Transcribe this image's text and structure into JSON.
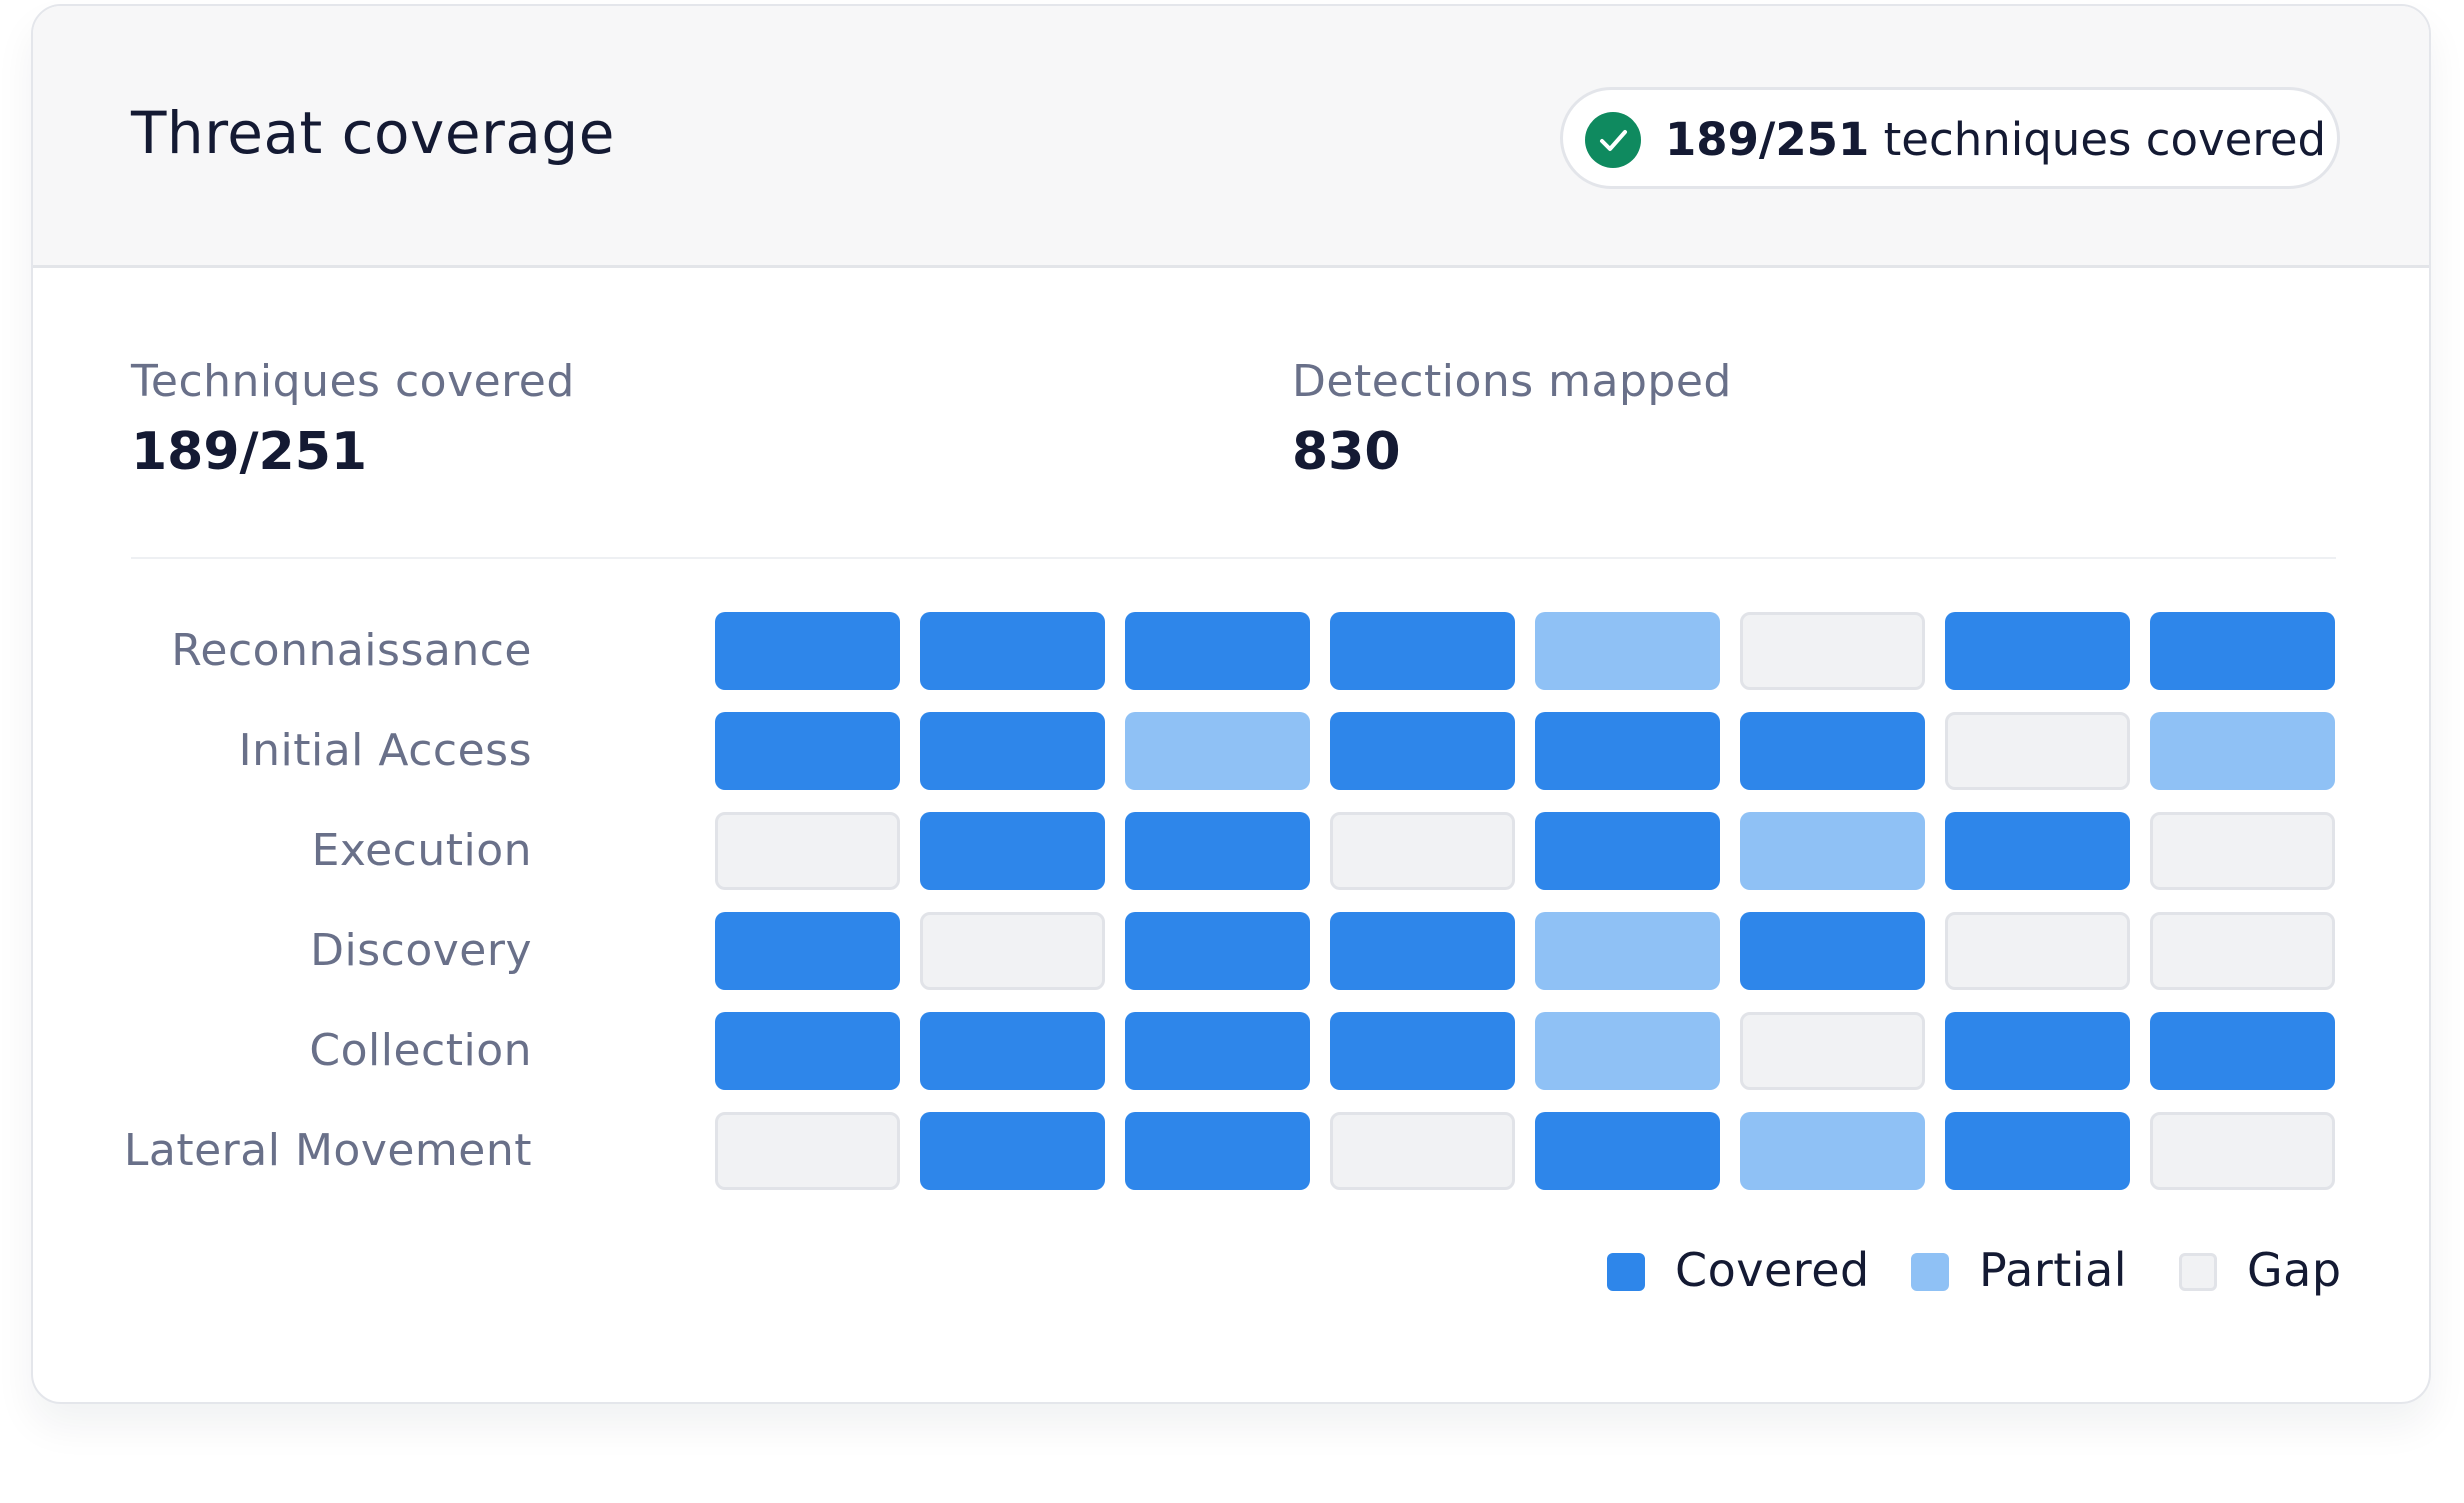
{
  "header": {
    "title": "Threat coverage",
    "badge": {
      "icon": "check-circle-icon",
      "value": "189/251",
      "suffix": "techniques covered",
      "icon_color": "#0f8a5f"
    }
  },
  "stats": [
    {
      "label": "Techniques covered",
      "value": "189/251"
    },
    {
      "label": "Detections mapped",
      "value": "830"
    }
  ],
  "colors": {
    "covered": "#2e86ea",
    "partial": "#8fc1f5",
    "gap": "#f1f2f4"
  },
  "chart_data": {
    "type": "heatmap",
    "rows": [
      "Reconnaissance",
      "Initial Access",
      "Execution",
      "Discovery",
      "Collection",
      "Lateral Movement"
    ],
    "values": [
      [
        "covered",
        "covered",
        "covered",
        "covered",
        "partial",
        "gap",
        "covered",
        "covered"
      ],
      [
        "covered",
        "covered",
        "partial",
        "covered",
        "covered",
        "covered",
        "gap",
        "partial"
      ],
      [
        "gap",
        "covered",
        "covered",
        "gap",
        "covered",
        "partial",
        "covered",
        "gap"
      ],
      [
        "covered",
        "gap",
        "covered",
        "covered",
        "partial",
        "covered",
        "gap",
        "gap"
      ],
      [
        "covered",
        "covered",
        "covered",
        "covered",
        "partial",
        "gap",
        "covered",
        "covered"
      ],
      [
        "gap",
        "covered",
        "covered",
        "gap",
        "covered",
        "partial",
        "covered",
        "gap"
      ]
    ],
    "legend": [
      {
        "key": "covered",
        "label": "Covered"
      },
      {
        "key": "partial",
        "label": "Partial"
      },
      {
        "key": "gap",
        "label": "Gap"
      }
    ],
    "legend_position": "bottom-right"
  }
}
